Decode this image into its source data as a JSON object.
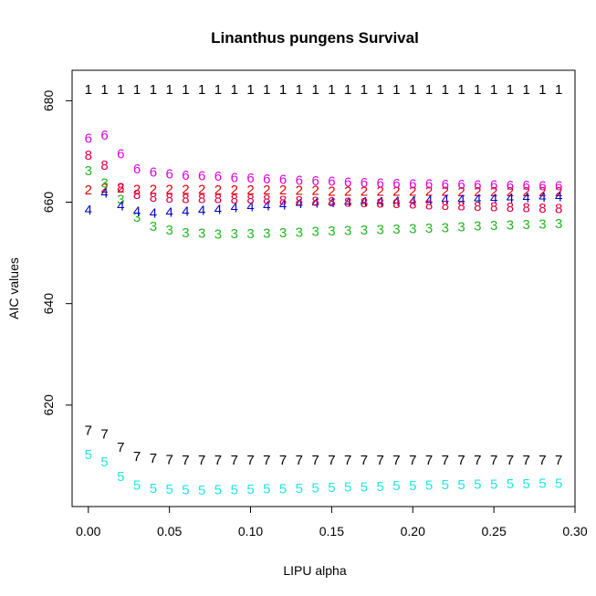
{
  "chart_data": {
    "type": "scatter",
    "title": "Linanthus pungens Survival",
    "xlabel": "LIPU alpha",
    "ylabel": "AIC values",
    "xlim": [
      -0.01,
      0.3
    ],
    "ylim": [
      600,
      686
    ],
    "x_ticks": [
      0.0,
      0.05,
      0.1,
      0.15,
      0.2,
      0.25,
      0.3
    ],
    "x_tick_labels": [
      "0.00",
      "0.05",
      "0.10",
      "0.15",
      "0.20",
      "0.25",
      "0.30"
    ],
    "y_ticks": [
      620,
      640,
      660,
      680
    ],
    "y_tick_labels": [
      "620",
      "640",
      "660",
      "680"
    ],
    "grid": false,
    "x": [
      0.0,
      0.01,
      0.02,
      0.03,
      0.04,
      0.05,
      0.06,
      0.07,
      0.08,
      0.09,
      0.1,
      0.11,
      0.12,
      0.13,
      0.14,
      0.15,
      0.16,
      0.17,
      0.18,
      0.19,
      0.2,
      0.21,
      0.22,
      0.23,
      0.24,
      0.25,
      0.26,
      0.27,
      0.28,
      0.29
    ],
    "series": [
      {
        "symbol": "1",
        "color": "#000000",
        "values": [
          682.2,
          682.2,
          682.2,
          682.2,
          682.2,
          682.2,
          682.2,
          682.2,
          682.2,
          682.2,
          682.2,
          682.2,
          682.2,
          682.2,
          682.2,
          682.2,
          682.2,
          682.2,
          682.2,
          682.2,
          682.2,
          682.2,
          682.2,
          682.2,
          682.2,
          682.2,
          682.2,
          682.2,
          682.2,
          682.2
        ]
      },
      {
        "symbol": "2",
        "color": "#df0000",
        "values": [
          662.4,
          662.8,
          662.8,
          662.5,
          662.5,
          662.5,
          662.5,
          662.5,
          662.4,
          662.4,
          662.4,
          662.4,
          662.4,
          662.3,
          662.3,
          662.2,
          662.2,
          662.2,
          662.2,
          662.2,
          662.2,
          662.2,
          662.2,
          662.1,
          662.1,
          662.1,
          662.1,
          662.1,
          662.1,
          662.1
        ]
      },
      {
        "symbol": "3",
        "color": "#22b522",
        "values": [
          666.2,
          663.8,
          660.5,
          657.0,
          655.2,
          654.5,
          654.0,
          653.9,
          653.7,
          653.8,
          653.8,
          653.9,
          654.0,
          654.1,
          654.2,
          654.3,
          654.4,
          654.5,
          654.6,
          654.7,
          654.8,
          654.9,
          655.0,
          655.1,
          655.3,
          655.4,
          655.5,
          655.6,
          655.7,
          655.8
        ]
      },
      {
        "symbol": "4",
        "color": "#0000cc",
        "values": [
          658.5,
          661.8,
          659.3,
          658.2,
          657.8,
          658.0,
          658.2,
          658.4,
          658.6,
          658.9,
          659.1,
          659.3,
          659.5,
          659.7,
          659.8,
          659.9,
          660.0,
          660.1,
          660.1,
          660.2,
          660.3,
          660.4,
          660.5,
          660.5,
          660.6,
          660.7,
          660.8,
          660.9,
          661.0,
          661.1
        ]
      },
      {
        "symbol": "5",
        "color": "#22e4e4",
        "values": [
          610.3,
          608.8,
          605.9,
          604.2,
          603.6,
          603.4,
          603.3,
          603.2,
          603.3,
          603.3,
          603.4,
          603.5,
          603.5,
          603.6,
          603.7,
          603.8,
          603.9,
          603.9,
          604.0,
          604.1,
          604.1,
          604.2,
          604.3,
          604.3,
          604.4,
          604.4,
          604.5,
          604.5,
          604.6,
          604.6
        ]
      },
      {
        "symbol": "6",
        "color": "#dd00dd",
        "values": [
          672.6,
          673.2,
          669.5,
          666.6,
          665.9,
          665.6,
          665.3,
          665.2,
          665.1,
          664.9,
          664.8,
          664.6,
          664.5,
          664.3,
          664.2,
          664.1,
          664.0,
          663.9,
          663.8,
          663.7,
          663.6,
          663.6,
          663.5,
          663.5,
          663.4,
          663.4,
          663.3,
          663.3,
          663.2,
          663.2
        ]
      },
      {
        "symbol": "7",
        "color": "#000000",
        "values": [
          615.0,
          614.3,
          611.7,
          609.9,
          609.5,
          609.3,
          609.2,
          609.2,
          609.2,
          609.2,
          609.2,
          609.2,
          609.2,
          609.2,
          609.2,
          609.2,
          609.2,
          609.2,
          609.2,
          609.2,
          609.2,
          609.2,
          609.2,
          609.2,
          609.2,
          609.2,
          609.2,
          609.2,
          609.2,
          609.2
        ]
      },
      {
        "symbol": "8",
        "color": "#df0040",
        "values": [
          669.3,
          667.3,
          662.9,
          661.5,
          661.0,
          660.8,
          660.7,
          660.7,
          660.7,
          660.6,
          660.6,
          660.5,
          660.4,
          660.3,
          660.2,
          660.1,
          660.0,
          659.9,
          659.8,
          659.7,
          659.6,
          659.5,
          659.4,
          659.3,
          659.2,
          659.1,
          659.0,
          658.9,
          658.8,
          658.7
        ]
      }
    ]
  }
}
